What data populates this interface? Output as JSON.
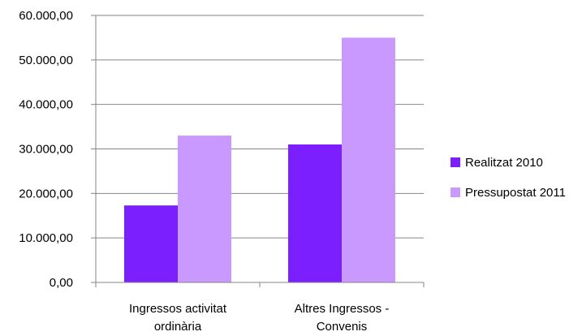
{
  "chart_data": {
    "type": "bar",
    "title": "",
    "xlabel": "",
    "ylabel": "",
    "categories": [
      [
        "Ingressos activitat",
        "ordinària"
      ],
      [
        "Altres Ingressos -",
        "Convenis"
      ]
    ],
    "series": [
      {
        "name": "Realitzat 2010",
        "color": "#7b1fff",
        "values": [
          17300,
          31000
        ]
      },
      {
        "name": "Pressupostat 2011",
        "color": "#c999ff",
        "values": [
          33000,
          55000
        ]
      }
    ],
    "ylim": [
      0,
      60000
    ],
    "yticks": [
      0,
      10000,
      20000,
      30000,
      40000,
      50000,
      60000
    ],
    "ytick_labels": [
      "0,00",
      "10.000,00",
      "20.000,00",
      "30.000,00",
      "40.000,00",
      "50.000,00",
      "60.000,00"
    ],
    "grid": true,
    "legend_position": "right"
  }
}
